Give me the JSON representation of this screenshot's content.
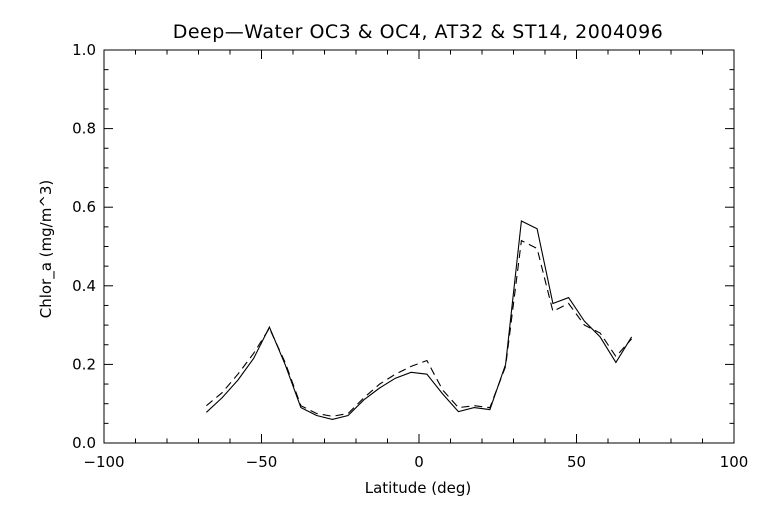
{
  "chart_data": {
    "type": "line",
    "title": "Deep—Water OC3 & OC4, AT32 & ST14, 2004096",
    "xlabel": "Latitude (deg)",
    "ylabel": "Chlor_a (mg/m^3)",
    "xlim": [
      -100,
      100
    ],
    "ylim": [
      0.0,
      1.0
    ],
    "x_ticks": [
      -100,
      -50,
      0,
      50,
      100
    ],
    "x_tick_labels": [
      "−100",
      "−50",
      "0",
      "50",
      "100"
    ],
    "y_ticks": [
      0.0,
      0.2,
      0.4,
      0.6,
      0.8,
      1.0
    ],
    "y_tick_labels": [
      "0.0",
      "0.2",
      "0.4",
      "0.6",
      "0.8",
      "1.0"
    ],
    "grid": false,
    "legend": false,
    "series": [
      {
        "line_style": "solid",
        "color": "#000000",
        "x": [
          -67.5,
          -62.5,
          -57.5,
          -52.5,
          -47.5,
          -42.5,
          -37.5,
          -32.5,
          -27.5,
          -22.5,
          -17.5,
          -12.5,
          -7.5,
          -2.5,
          2.5,
          7.5,
          12.5,
          17.5,
          22.5,
          27.5,
          32.5,
          37.5,
          42.5,
          47.5,
          52.5,
          57.5,
          62.5,
          67.5
        ],
        "y": [
          0.078,
          0.115,
          0.16,
          0.215,
          0.295,
          0.2,
          0.09,
          0.07,
          0.06,
          0.07,
          0.11,
          0.14,
          0.165,
          0.18,
          0.175,
          0.125,
          0.08,
          0.09,
          0.085,
          0.2,
          0.565,
          0.545,
          0.355,
          0.37,
          0.31,
          0.27,
          0.205,
          0.27
        ]
      },
      {
        "line_style": "dashed",
        "color": "#000000",
        "x": [
          -67.5,
          -62.5,
          -57.5,
          -52.5,
          -47.5,
          -42.5,
          -37.5,
          -32.5,
          -27.5,
          -22.5,
          -17.5,
          -12.5,
          -7.5,
          -2.5,
          2.5,
          7.5,
          12.5,
          17.5,
          22.5,
          27.5,
          32.5,
          37.5,
          42.5,
          47.5,
          52.5,
          57.5,
          62.5,
          67.5
        ],
        "y": [
          0.095,
          0.128,
          0.175,
          0.228,
          0.292,
          0.205,
          0.095,
          0.075,
          0.068,
          0.075,
          0.115,
          0.15,
          0.175,
          0.195,
          0.21,
          0.135,
          0.09,
          0.095,
          0.09,
          0.195,
          0.515,
          0.495,
          0.335,
          0.355,
          0.3,
          0.28,
          0.22,
          0.265
        ]
      }
    ]
  }
}
